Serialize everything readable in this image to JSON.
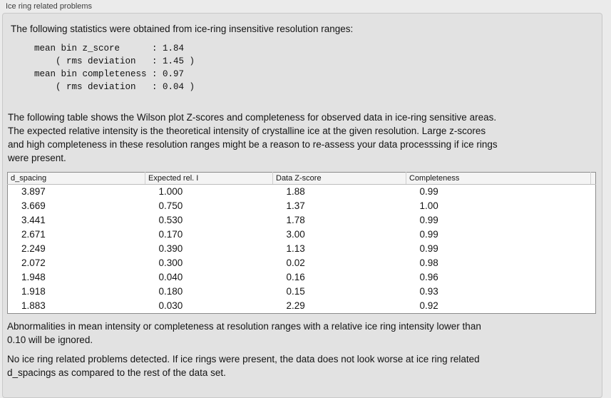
{
  "window": {
    "title": "Ice ring related problems"
  },
  "colors": {
    "page_bg": "#ebebeb",
    "panel_bg": "#e2e2e2",
    "panel_border": "#c8c8c8",
    "table_border": "#8c8c8c",
    "table_header_bg": "#f4f4f4",
    "text": "#141414"
  },
  "panel": {
    "intro": "The following statistics were obtained from ice-ring insensitive resolution ranges:",
    "stats_block": "mean bin z_score      : 1.84\n    ( rms deviation   : 1.45 )\nmean bin completeness : 0.97\n    ( rms deviation   : 0.04 )",
    "stats": {
      "mean_bin_z_score": "1.84",
      "z_score_rms_deviation": "1.45",
      "mean_bin_completeness": "0.97",
      "completeness_rms_deviation": "0.04"
    },
    "table_description": "The following table shows the Wilson plot Z-scores and completeness for observed data in ice-ring sensitive areas.\nThe expected relative intensity is the theoretical intensity of crystalline ice at the given resolution. Large z-scores\nand high completeness in these resolution ranges might be a reason to re-assess your data processsing if ice rings\nwere present.",
    "ignore_note": "Abnormalities in mean intensity or completeness at resolution ranges with a relative ice ring intensity lower than\n0.10 will be ignored.",
    "conclusion": "No ice ring related problems detected. If ice rings were present, the data does not look worse at ice ring related\nd_spacings as compared to the rest of the data set."
  },
  "table": {
    "columns": [
      "d_spacing",
      "Expected rel. I",
      "Data Z-score",
      "Completeness"
    ],
    "rows": [
      [
        "3.897",
        "1.000",
        "1.88",
        "0.99"
      ],
      [
        "3.669",
        "0.750",
        "1.37",
        "1.00"
      ],
      [
        "3.441",
        "0.530",
        "1.78",
        "0.99"
      ],
      [
        "2.671",
        "0.170",
        "3.00",
        "0.99"
      ],
      [
        "2.249",
        "0.390",
        "1.13",
        "0.99"
      ],
      [
        "2.072",
        "0.300",
        "0.02",
        "0.98"
      ],
      [
        "1.948",
        "0.040",
        "0.16",
        "0.96"
      ],
      [
        "1.918",
        "0.180",
        "0.15",
        "0.93"
      ],
      [
        "1.883",
        "0.030",
        "2.29",
        "0.92"
      ]
    ]
  }
}
